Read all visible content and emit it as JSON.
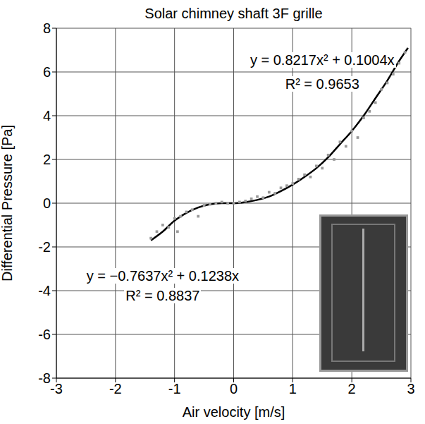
{
  "chart_data": {
    "type": "scatter",
    "title": "Solar chimney shaft 3F grille",
    "x_label": "Air velocity [m/s]",
    "y_label": "Differential Pressure [Pa]",
    "xlim": [
      -3,
      3
    ],
    "xticks": [
      -3,
      -2,
      -1,
      0,
      1,
      2,
      3
    ],
    "ylim": [
      -8,
      8
    ],
    "yticks": [
      -8,
      -6,
      -4,
      -2,
      0,
      2,
      4,
      6,
      8
    ],
    "grid": true,
    "series": [
      {
        "type": "scatter",
        "color": "#999999",
        "marker": "square",
        "x": [
          -1.4,
          -1.3,
          -1.2,
          -1.1,
          -1.0,
          -0.95,
          -0.9,
          -0.8,
          -0.7,
          -0.6,
          -0.5,
          -0.4,
          -0.3,
          -0.2,
          -0.1,
          0,
          0.1,
          0.2,
          0.3,
          0.4,
          0.5,
          0.6,
          0.7,
          0.8,
          0.9,
          1.0,
          1.1,
          1.2,
          1.3,
          1.4,
          1.5,
          1.6,
          1.7,
          1.8,
          1.9,
          2.0,
          2.1,
          2.2,
          2.3,
          2.4,
          2.5,
          2.6,
          2.7,
          2.8,
          2.9
        ],
        "values": [
          -1.6,
          -1.3,
          -1.0,
          -1.1,
          -0.7,
          -1.3,
          -0.6,
          -0.4,
          -0.3,
          -0.6,
          -0.1,
          -0.05,
          0,
          0.05,
          0,
          0,
          0.05,
          0.1,
          0.2,
          0.3,
          0.25,
          0.5,
          0.45,
          0.7,
          0.8,
          0.9,
          1.1,
          1.3,
          1.2,
          1.7,
          1.6,
          2.2,
          2.0,
          2.8,
          2.6,
          3.3,
          3.0,
          3.9,
          4.2,
          4.6,
          5.2,
          5.5,
          5.9,
          6.4,
          6.9
        ]
      },
      {
        "type": "line",
        "color": "#000000",
        "line_style": "solid",
        "x": [
          -1.4,
          -1.2,
          -1.0,
          -0.8,
          -0.6,
          -0.4,
          -0.2,
          0,
          0.2,
          0.4,
          0.6,
          0.8,
          1.0,
          1.2,
          1.4,
          1.6,
          1.8,
          2.0,
          2.2,
          2.4,
          2.6,
          2.8,
          2.95
        ],
        "values": [
          -1.7,
          -1.3,
          -0.8,
          -0.45,
          -0.2,
          -0.05,
          0,
          0,
          0.05,
          0.15,
          0.3,
          0.55,
          0.85,
          1.2,
          1.6,
          2.1,
          2.7,
          3.3,
          4.0,
          4.8,
          5.6,
          6.5,
          7.1
        ]
      }
    ],
    "annotations": [
      {
        "text": "y = 0.8217x² + 0.1004x"
      },
      {
        "text": "R² = 0.9653"
      },
      {
        "text": "y = −0.7637x² + 0.1238x"
      },
      {
        "text": "R² = 0.8837"
      }
    ]
  }
}
